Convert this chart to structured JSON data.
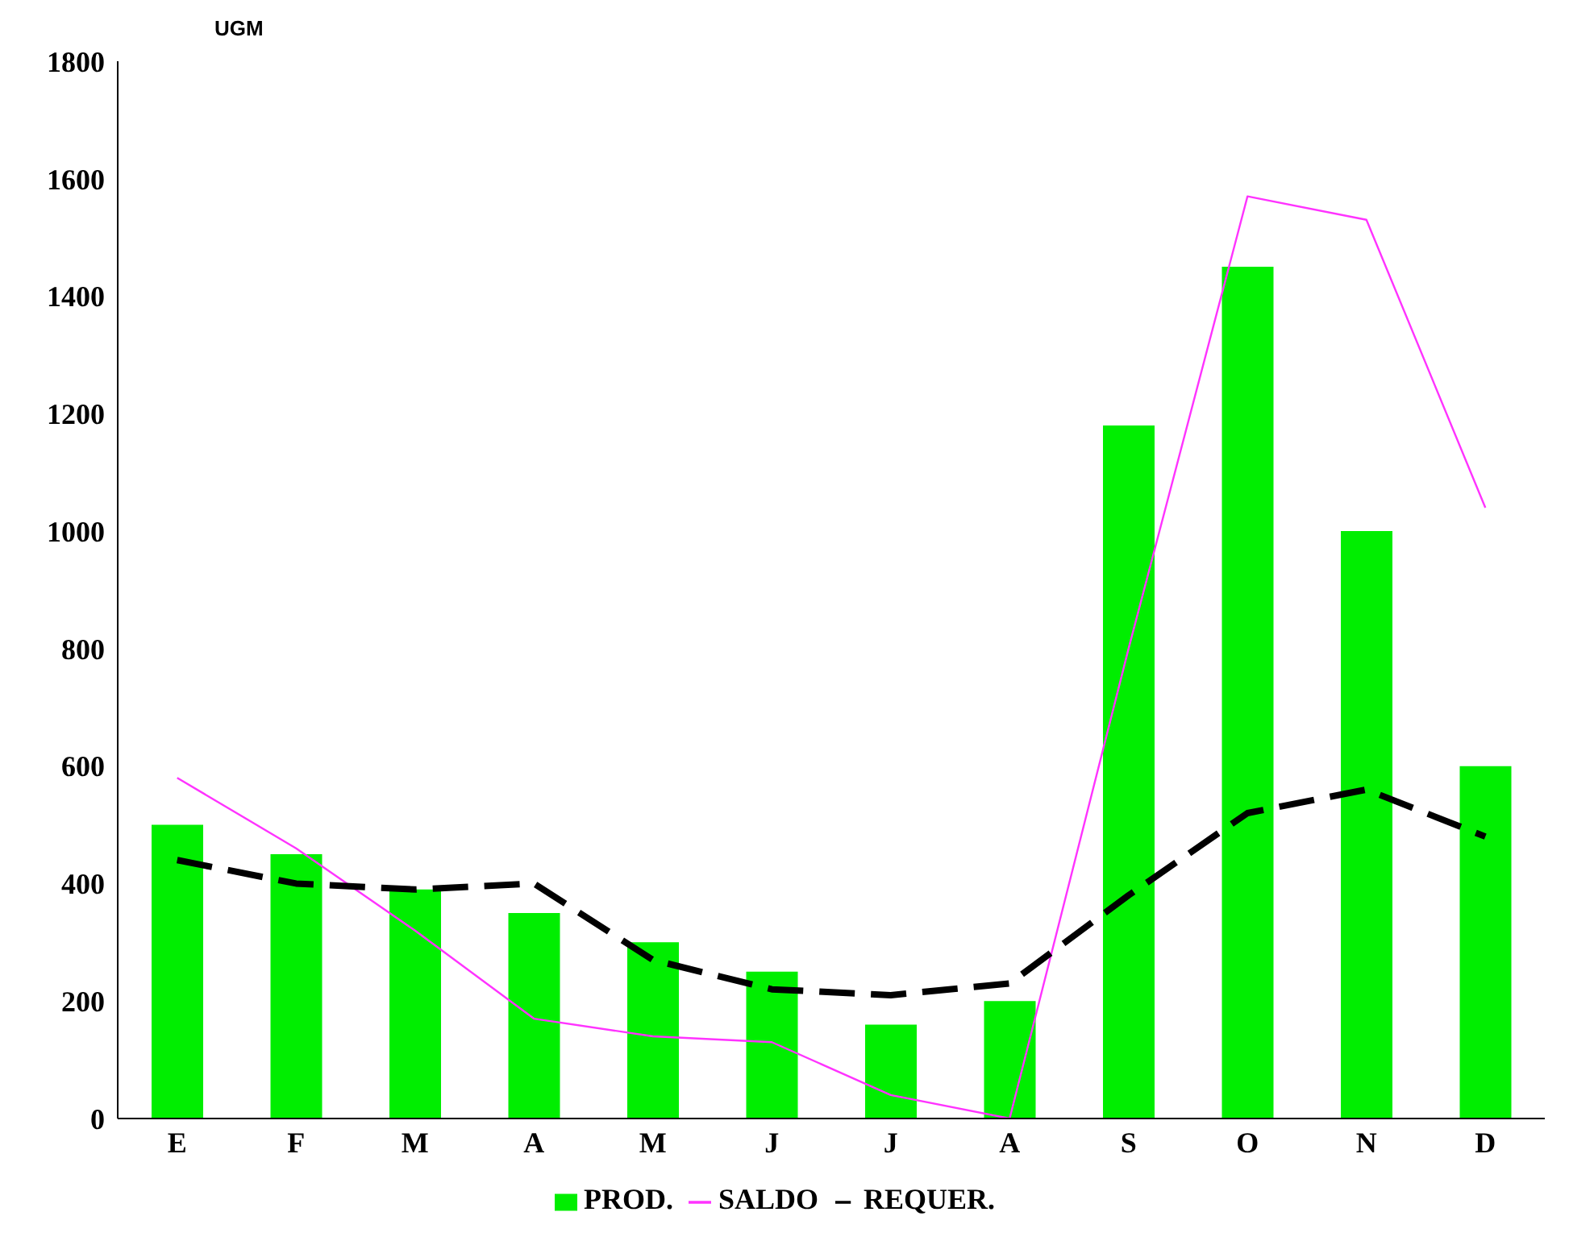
{
  "chart_data": {
    "type": "bar",
    "ylabel": "UGM",
    "categories": [
      "E",
      "F",
      "M",
      "A",
      "M",
      "J",
      "J",
      "A",
      "S",
      "O",
      "N",
      "D"
    ],
    "series": [
      {
        "name": "PROD.",
        "color": "#00ee00",
        "values": [
          500,
          450,
          390,
          350,
          300,
          250,
          160,
          200,
          1180,
          1450,
          1000,
          600
        ]
      },
      {
        "name": "SALDO",
        "type": "line",
        "color": "#ff33ff",
        "line_style": "solid",
        "values": [
          580,
          460,
          320,
          170,
          140,
          130,
          40,
          0,
          800,
          1570,
          1530,
          1040
        ]
      },
      {
        "name": "REQUER.",
        "type": "line",
        "color": "#000000",
        "line_style": "dashed",
        "values": [
          440,
          400,
          390,
          400,
          270,
          220,
          210,
          230,
          380,
          520,
          560,
          480
        ]
      }
    ],
    "ylim": [
      0,
      1800
    ],
    "yticks": [
      0,
      200,
      400,
      600,
      800,
      1000,
      1200,
      1400,
      1600,
      1800
    ],
    "grid": false,
    "legend": "bottom",
    "marker": "none"
  }
}
